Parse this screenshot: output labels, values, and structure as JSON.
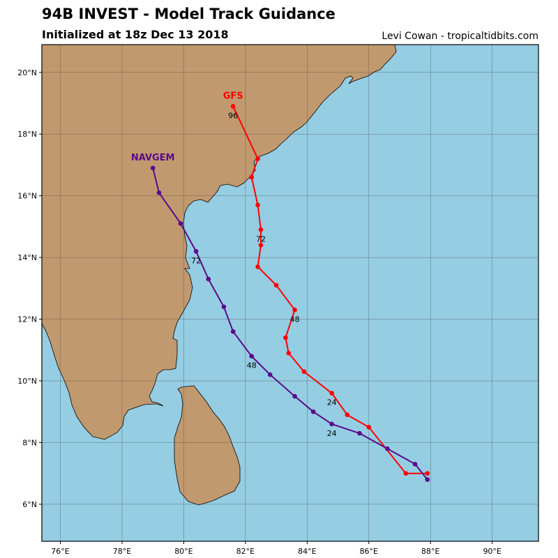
{
  "header": {
    "title": "94B INVEST - Model Track Guidance",
    "subtitle": "Initialized at 18z Dec 13 2018",
    "credit": "Levi Cowan - tropicaltidbits.com"
  },
  "map": {
    "lon_range": [
      75.4,
      91.5
    ],
    "lat_range": [
      4.8,
      20.9
    ],
    "ocean_color": "#95cde2",
    "land_color": "#c1996e",
    "grid_color": "#4a4a4a",
    "lon_ticks": [
      {
        "value": 76,
        "label": "76°E"
      },
      {
        "value": 78,
        "label": "78°E"
      },
      {
        "value": 80,
        "label": "80°E"
      },
      {
        "value": 82,
        "label": "82°E"
      },
      {
        "value": 84,
        "label": "84°E"
      },
      {
        "value": 86,
        "label": "86°E"
      },
      {
        "value": 88,
        "label": "88°E"
      },
      {
        "value": 90,
        "label": "90°E"
      }
    ],
    "lat_ticks": [
      {
        "value": 6,
        "label": "6°N"
      },
      {
        "value": 8,
        "label": "8°N"
      },
      {
        "value": 10,
        "label": "10°N"
      },
      {
        "value": 12,
        "label": "12°N"
      },
      {
        "value": 14,
        "label": "14°N"
      },
      {
        "value": 16,
        "label": "16°N"
      },
      {
        "value": 18,
        "label": "18°N"
      },
      {
        "value": 20,
        "label": "20°N"
      }
    ]
  },
  "tracks": [
    {
      "name": "GFS",
      "color": "#ff0000",
      "points": [
        [
          87.9,
          7.0
        ],
        [
          87.2,
          7.0
        ],
        [
          86.0,
          8.5
        ],
        [
          85.3,
          8.9
        ],
        [
          84.8,
          9.6
        ],
        [
          83.9,
          10.3
        ],
        [
          83.4,
          10.9
        ],
        [
          83.3,
          11.4
        ],
        [
          83.6,
          12.3
        ],
        [
          83.0,
          13.1
        ],
        [
          82.4,
          13.7
        ],
        [
          82.5,
          14.4
        ],
        [
          82.5,
          14.9
        ],
        [
          82.4,
          15.7
        ],
        [
          82.2,
          16.6
        ],
        [
          82.4,
          17.2
        ],
        [
          81.6,
          18.9
        ]
      ],
      "hour_labels": [
        {
          "text": "24",
          "lon": 84.8,
          "lat": 9.6
        },
        {
          "text": "48",
          "lon": 83.6,
          "lat": 12.3
        },
        {
          "text": "72",
          "lon": 82.5,
          "lat": 14.9
        },
        {
          "text": "96",
          "lon": 81.6,
          "lat": 18.9
        }
      ]
    },
    {
      "name": "NAVGEM",
      "color": "#5a0a8a",
      "points": [
        [
          87.9,
          6.8
        ],
        [
          87.5,
          7.3
        ],
        [
          86.6,
          7.8
        ],
        [
          85.7,
          8.3
        ],
        [
          84.8,
          8.6
        ],
        [
          84.2,
          9.0
        ],
        [
          83.6,
          9.5
        ],
        [
          82.8,
          10.2
        ],
        [
          82.2,
          10.8
        ],
        [
          81.6,
          11.6
        ],
        [
          81.3,
          12.4
        ],
        [
          80.8,
          13.3
        ],
        [
          80.4,
          14.2
        ],
        [
          79.9,
          15.1
        ],
        [
          79.2,
          16.1
        ],
        [
          79.0,
          16.9
        ]
      ],
      "hour_labels": [
        {
          "text": "24",
          "lon": 84.8,
          "lat": 8.6
        },
        {
          "text": "48",
          "lon": 82.2,
          "lat": 10.8
        },
        {
          "text": "72",
          "lon": 80.4,
          "lat": 14.2
        }
      ]
    }
  ]
}
